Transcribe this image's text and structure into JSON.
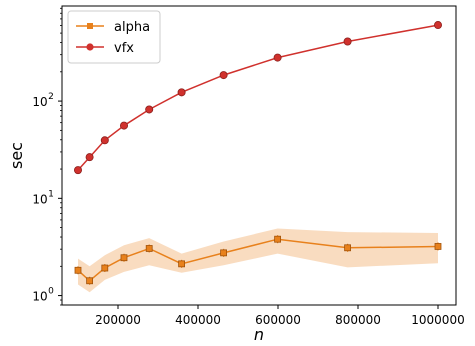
{
  "chart_data": {
    "type": "line",
    "xlabel": "n",
    "ylabel": "sec",
    "yscale": "log",
    "xlim": [
      60000,
      1045000
    ],
    "ylim": [
      0.8,
      950
    ],
    "x_ticks": [
      200000,
      400000,
      600000,
      800000,
      1000000
    ],
    "x_tick_labels": [
      "200000",
      "400000",
      "600000",
      "800000",
      "1000000"
    ],
    "y_ticks": [
      1,
      10,
      100
    ],
    "y_tick_labels": [
      "10",
      "10",
      "10"
    ],
    "y_tick_exponents": [
      "0",
      "1",
      "2"
    ],
    "legend": {
      "position": "top-left"
    },
    "series": [
      {
        "name": "alpha",
        "color": "#e8811c",
        "marker": "square",
        "x": [
          100000,
          129000,
          167000,
          215000,
          278000,
          359000,
          464000,
          599000,
          774000,
          1000000
        ],
        "y": [
          1.82,
          1.42,
          1.92,
          2.45,
          3.05,
          2.12,
          2.75,
          3.8,
          3.1,
          3.2
        ],
        "y_lower": [
          1.3,
          1.08,
          1.45,
          1.75,
          2.05,
          1.72,
          2.05,
          2.7,
          1.95,
          2.15
        ],
        "y_upper": [
          2.4,
          2.0,
          2.6,
          3.3,
          3.9,
          2.7,
          3.6,
          4.9,
          4.5,
          4.4
        ]
      },
      {
        "name": "vfx",
        "color": "#d0312d",
        "marker": "circle",
        "x": [
          100000,
          129000,
          167000,
          215000,
          278000,
          359000,
          464000,
          599000,
          774000,
          1000000
        ],
        "y": [
          19.5,
          26.5,
          39.5,
          56,
          82,
          123,
          185,
          280,
          410,
          605
        ]
      }
    ]
  }
}
